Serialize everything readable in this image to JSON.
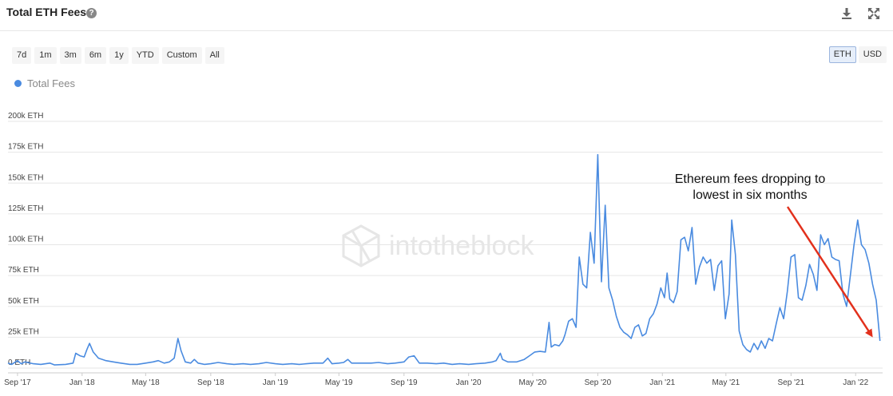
{
  "header": {
    "title": "Total ETH Fees",
    "help_glyph": "?",
    "download_icon": "download-icon",
    "fullscreen_icon": "fullscreen-icon"
  },
  "range_buttons": [
    "7d",
    "1m",
    "3m",
    "6m",
    "1y",
    "YTD",
    "Custom",
    "All"
  ],
  "unit_buttons": [
    {
      "label": "ETH",
      "active": true
    },
    {
      "label": "USD",
      "active": false
    }
  ],
  "watermark": "intotheblock",
  "colors": {
    "series": "#4a8be0",
    "arrow": "#e2301c",
    "grid": "#e6e6e6"
  },
  "chart_data": {
    "type": "line",
    "title": "Total ETH Fees",
    "ylabel": "",
    "ylim": [
      0,
      200000
    ],
    "yticks": [
      {
        "value": 0,
        "label": "0 ETH"
      },
      {
        "value": 25000,
        "label": "25k ETH"
      },
      {
        "value": 50000,
        "label": "50k ETH"
      },
      {
        "value": 75000,
        "label": "75k ETH"
      },
      {
        "value": 100000,
        "label": "100k ETH"
      },
      {
        "value": 125000,
        "label": "125k ETH"
      },
      {
        "value": 150000,
        "label": "150k ETH"
      },
      {
        "value": 175000,
        "label": "175k ETH"
      },
      {
        "value": 200000,
        "label": "200k ETH"
      }
    ],
    "xlim": [
      "2017-08-14",
      "2022-02-21"
    ],
    "xticks": [
      {
        "date": "2017-09-01",
        "label": "Sep '17"
      },
      {
        "date": "2018-01-01",
        "label": "Jan '18"
      },
      {
        "date": "2018-05-01",
        "label": "May '18"
      },
      {
        "date": "2018-09-01",
        "label": "Sep '18"
      },
      {
        "date": "2019-01-01",
        "label": "Jan '19"
      },
      {
        "date": "2019-05-01",
        "label": "May '19"
      },
      {
        "date": "2019-09-01",
        "label": "Sep '19"
      },
      {
        "date": "2020-01-01",
        "label": "Jan '20"
      },
      {
        "date": "2020-05-01",
        "label": "May '20"
      },
      {
        "date": "2020-09-01",
        "label": "Sep '20"
      },
      {
        "date": "2021-01-01",
        "label": "Jan '21"
      },
      {
        "date": "2021-05-01",
        "label": "May '21"
      },
      {
        "date": "2021-09-01",
        "label": "Sep '21"
      },
      {
        "date": "2022-01-01",
        "label": "Jan '22"
      }
    ],
    "grid": true,
    "legend": "top-left",
    "series": [
      {
        "name": "Total Fees",
        "points": [
          [
            "2017-08-14",
            4000
          ],
          [
            "2017-08-21",
            3000
          ],
          [
            "2017-09-01",
            6000
          ],
          [
            "2017-09-08",
            3500
          ],
          [
            "2017-09-15",
            5000
          ],
          [
            "2017-10-01",
            3500
          ],
          [
            "2017-10-15",
            3000
          ],
          [
            "2017-11-01",
            4000
          ],
          [
            "2017-11-10",
            2500
          ],
          [
            "2017-12-01",
            3000
          ],
          [
            "2017-12-15",
            4000
          ],
          [
            "2017-12-20",
            12000
          ],
          [
            "2017-12-28",
            10000
          ],
          [
            "2018-01-05",
            9000
          ],
          [
            "2018-01-10",
            15000
          ],
          [
            "2018-01-15",
            20000
          ],
          [
            "2018-01-22",
            13000
          ],
          [
            "2018-02-01",
            8000
          ],
          [
            "2018-02-15",
            6000
          ],
          [
            "2018-03-01",
            5000
          ],
          [
            "2018-03-15",
            4000
          ],
          [
            "2018-04-01",
            3000
          ],
          [
            "2018-04-15",
            3000
          ],
          [
            "2018-05-01",
            4000
          ],
          [
            "2018-05-15",
            5000
          ],
          [
            "2018-05-25",
            6000
          ],
          [
            "2018-06-05",
            4000
          ],
          [
            "2018-06-15",
            5000
          ],
          [
            "2018-06-24",
            8000
          ],
          [
            "2018-07-01",
            24000
          ],
          [
            "2018-07-07",
            14000
          ],
          [
            "2018-07-15",
            5000
          ],
          [
            "2018-07-25",
            4000
          ],
          [
            "2018-08-01",
            7000
          ],
          [
            "2018-08-08",
            4000
          ],
          [
            "2018-08-20",
            3000
          ],
          [
            "2018-09-01",
            3500
          ],
          [
            "2018-09-15",
            4500
          ],
          [
            "2018-10-01",
            3500
          ],
          [
            "2018-10-15",
            3000
          ],
          [
            "2018-11-01",
            3500
          ],
          [
            "2018-11-15",
            3000
          ],
          [
            "2018-12-01",
            3500
          ],
          [
            "2018-12-15",
            4500
          ],
          [
            "2019-01-01",
            3500
          ],
          [
            "2019-01-15",
            3000
          ],
          [
            "2019-02-01",
            3500
          ],
          [
            "2019-02-15",
            3000
          ],
          [
            "2019-03-01",
            3500
          ],
          [
            "2019-03-15",
            4000
          ],
          [
            "2019-04-01",
            4000
          ],
          [
            "2019-04-10",
            8000
          ],
          [
            "2019-04-18",
            3500
          ],
          [
            "2019-05-01",
            4000
          ],
          [
            "2019-05-10",
            4500
          ],
          [
            "2019-05-18",
            7000
          ],
          [
            "2019-05-25",
            4000
          ],
          [
            "2019-06-15",
            4000
          ],
          [
            "2019-07-01",
            4000
          ],
          [
            "2019-07-15",
            4500
          ],
          [
            "2019-08-01",
            3500
          ],
          [
            "2019-08-15",
            4000
          ],
          [
            "2019-09-01",
            5000
          ],
          [
            "2019-09-10",
            9000
          ],
          [
            "2019-09-20",
            10000
          ],
          [
            "2019-09-30",
            4000
          ],
          [
            "2019-10-15",
            4000
          ],
          [
            "2019-11-01",
            3500
          ],
          [
            "2019-11-15",
            4000
          ],
          [
            "2019-12-01",
            3000
          ],
          [
            "2019-12-15",
            3500
          ],
          [
            "2020-01-01",
            3000
          ],
          [
            "2020-01-15",
            3500
          ],
          [
            "2020-02-01",
            4000
          ],
          [
            "2020-02-15",
            5000
          ],
          [
            "2020-02-22",
            6000
          ],
          [
            "2020-03-01",
            12000
          ],
          [
            "2020-03-05",
            7000
          ],
          [
            "2020-03-15",
            5000
          ],
          [
            "2020-04-01",
            5000
          ],
          [
            "2020-04-15",
            7000
          ],
          [
            "2020-04-25",
            10000
          ],
          [
            "2020-05-05",
            13000
          ],
          [
            "2020-05-15",
            13500
          ],
          [
            "2020-05-25",
            13000
          ],
          [
            "2020-06-01",
            37000
          ],
          [
            "2020-06-05",
            17000
          ],
          [
            "2020-06-12",
            19000
          ],
          [
            "2020-06-20",
            18000
          ],
          [
            "2020-06-27",
            22000
          ],
          [
            "2020-07-01",
            27000
          ],
          [
            "2020-07-08",
            38000
          ],
          [
            "2020-07-15",
            40000
          ],
          [
            "2020-07-22",
            33000
          ],
          [
            "2020-07-28",
            90000
          ],
          [
            "2020-08-04",
            68000
          ],
          [
            "2020-08-11",
            65000
          ],
          [
            "2020-08-18",
            110000
          ],
          [
            "2020-08-25",
            85000
          ],
          [
            "2020-09-01",
            173000
          ],
          [
            "2020-09-08",
            70000
          ],
          [
            "2020-09-15",
            132000
          ],
          [
            "2020-09-22",
            65000
          ],
          [
            "2020-09-29",
            55000
          ],
          [
            "2020-10-06",
            42000
          ],
          [
            "2020-10-13",
            33000
          ],
          [
            "2020-10-20",
            29000
          ],
          [
            "2020-10-27",
            27000
          ],
          [
            "2020-11-03",
            24000
          ],
          [
            "2020-11-10",
            33000
          ],
          [
            "2020-11-17",
            35000
          ],
          [
            "2020-11-24",
            26000
          ],
          [
            "2020-12-01",
            28000
          ],
          [
            "2020-12-08",
            40000
          ],
          [
            "2020-12-15",
            44000
          ],
          [
            "2020-12-22",
            52000
          ],
          [
            "2020-12-29",
            65000
          ],
          [
            "2021-01-05",
            57000
          ],
          [
            "2021-01-10",
            77000
          ],
          [
            "2021-01-15",
            56000
          ],
          [
            "2021-01-22",
            53000
          ],
          [
            "2021-01-29",
            62000
          ],
          [
            "2021-02-05",
            104000
          ],
          [
            "2021-02-12",
            106000
          ],
          [
            "2021-02-19",
            95000
          ],
          [
            "2021-02-26",
            114000
          ],
          [
            "2021-03-05",
            68000
          ],
          [
            "2021-03-12",
            82000
          ],
          [
            "2021-03-19",
            90000
          ],
          [
            "2021-03-26",
            85000
          ],
          [
            "2021-04-02",
            88000
          ],
          [
            "2021-04-09",
            63000
          ],
          [
            "2021-04-16",
            83000
          ],
          [
            "2021-04-23",
            87000
          ],
          [
            "2021-04-30",
            40000
          ],
          [
            "2021-05-07",
            60000
          ],
          [
            "2021-05-12",
            120000
          ],
          [
            "2021-05-19",
            92000
          ],
          [
            "2021-05-26",
            30000
          ],
          [
            "2021-06-02",
            19000
          ],
          [
            "2021-06-09",
            15000
          ],
          [
            "2021-06-16",
            13000
          ],
          [
            "2021-06-23",
            20000
          ],
          [
            "2021-06-30",
            15000
          ],
          [
            "2021-07-07",
            22000
          ],
          [
            "2021-07-14",
            16000
          ],
          [
            "2021-07-21",
            24000
          ],
          [
            "2021-07-28",
            22000
          ],
          [
            "2021-08-04",
            36000
          ],
          [
            "2021-08-11",
            49000
          ],
          [
            "2021-08-18",
            40000
          ],
          [
            "2021-08-25",
            62000
          ],
          [
            "2021-09-01",
            90000
          ],
          [
            "2021-09-08",
            92000
          ],
          [
            "2021-09-15",
            57000
          ],
          [
            "2021-09-22",
            55000
          ],
          [
            "2021-09-29",
            67000
          ],
          [
            "2021-10-06",
            84000
          ],
          [
            "2021-10-13",
            76000
          ],
          [
            "2021-10-20",
            63000
          ],
          [
            "2021-10-27",
            108000
          ],
          [
            "2021-11-03",
            100000
          ],
          [
            "2021-11-10",
            105000
          ],
          [
            "2021-11-17",
            90000
          ],
          [
            "2021-11-24",
            88000
          ],
          [
            "2021-12-01",
            87000
          ],
          [
            "2021-12-08",
            60000
          ],
          [
            "2021-12-15",
            50000
          ],
          [
            "2021-12-22",
            75000
          ],
          [
            "2021-12-29",
            100000
          ],
          [
            "2022-01-05",
            120000
          ],
          [
            "2022-01-12",
            100000
          ],
          [
            "2022-01-19",
            96000
          ],
          [
            "2022-01-26",
            85000
          ],
          [
            "2022-02-02",
            68000
          ],
          [
            "2022-02-09",
            55000
          ],
          [
            "2022-02-16",
            22000
          ]
        ]
      }
    ],
    "annotations": [
      {
        "text": [
          "Ethereum fees dropping to",
          "lowest in six months"
        ],
        "arrow_from": [
          "2021-11-10",
          105000
        ],
        "arrow_to": [
          "2022-02-16",
          22000
        ]
      }
    ]
  }
}
